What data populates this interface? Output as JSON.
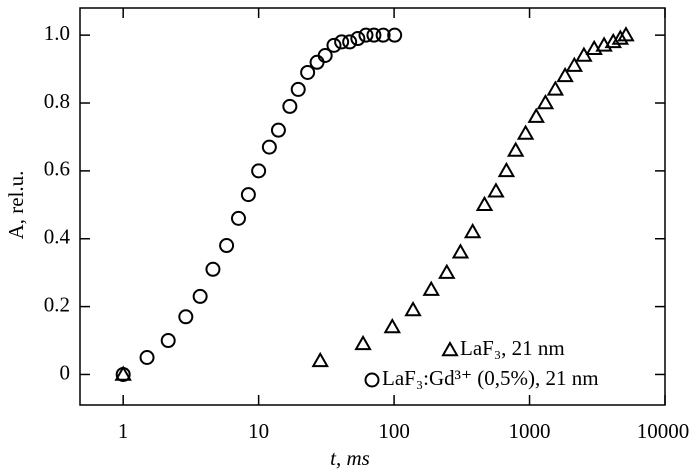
{
  "chart_data": {
    "type": "scatter",
    "xlabel": "t, ms",
    "ylabel": "A, rel.u.",
    "xscale": "log",
    "xlim": [
      0.48,
      10000
    ],
    "ylim": [
      -0.09,
      1.08
    ],
    "xticks": [
      1,
      10,
      100,
      1000,
      10000
    ],
    "yticks": [
      0,
      {
        "value": 0.2,
        "label": "0.2"
      },
      {
        "value": 0.4,
        "label": "0.4"
      },
      {
        "value": 0.6,
        "label": "0.6"
      },
      {
        "value": 0.8,
        "label": "0.8"
      },
      {
        "value": 1,
        "label": "1.0"
      }
    ],
    "legend": "lower right",
    "series": [
      {
        "name": "LaF₃, 21 nm",
        "marker": "triangle",
        "color": "#000000",
        "x": [
          1,
          28.5,
          59,
          97,
          138,
          188,
          245,
          309,
          380,
          465,
          565,
          675,
          790,
          935,
          1120,
          1310,
          1550,
          1830,
          2140,
          2520,
          3000,
          3550,
          4150,
          4680,
          5150
        ],
        "values": [
          0,
          0.04,
          0.09,
          0.14,
          0.19,
          0.25,
          0.3,
          0.36,
          0.42,
          0.5,
          0.54,
          0.6,
          0.66,
          0.71,
          0.76,
          0.8,
          0.84,
          0.88,
          0.91,
          0.94,
          0.96,
          0.97,
          0.98,
          0.99,
          1.0
        ]
      },
      {
        "name": "LaF₃:Gd³⁺ (0,5%), 21 nm",
        "marker": "circle",
        "color": "#000000",
        "x": [
          1,
          1.5,
          2.15,
          2.9,
          3.7,
          4.6,
          5.8,
          7.1,
          8.4,
          10,
          12,
          14,
          17,
          19.6,
          23,
          27,
          31,
          36,
          41,
          47,
          54,
          62,
          71,
          83,
          101
        ],
        "values": [
          0,
          0.05,
          0.1,
          0.17,
          0.23,
          0.31,
          0.38,
          0.46,
          0.53,
          0.6,
          0.67,
          0.72,
          0.79,
          0.84,
          0.89,
          0.92,
          0.94,
          0.97,
          0.98,
          0.98,
          0.99,
          1.0,
          1.0,
          1.0,
          1.0
        ]
      }
    ]
  }
}
